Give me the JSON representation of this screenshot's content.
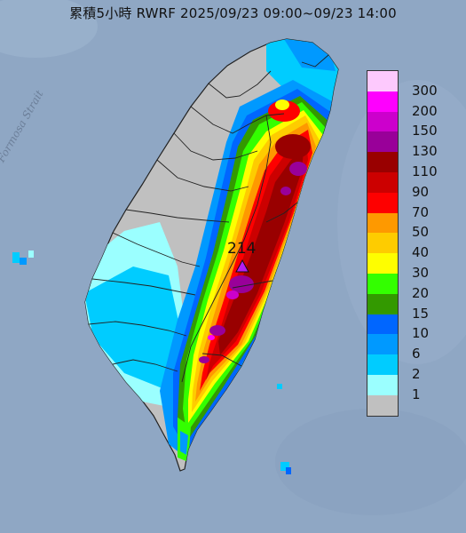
{
  "title": "累積5小時 RWRF 2025/09/23 09:00~09/23 14:00",
  "strait_label": "Formosa Strait",
  "peak": {
    "value_text": "214",
    "marker": "triangle-marker",
    "color": "#b41ef0"
  },
  "legend": {
    "levels": [
      {
        "label": "300",
        "color": "#fdc9fd"
      },
      {
        "label": "200",
        "color": "#fe00fe"
      },
      {
        "label": "150",
        "color": "#cc00cc"
      },
      {
        "label": "130",
        "color": "#990099"
      },
      {
        "label": "110",
        "color": "#990000"
      },
      {
        "label": "90",
        "color": "#cc0000"
      },
      {
        "label": "70",
        "color": "#fe0000"
      },
      {
        "label": "50",
        "color": "#fe9900"
      },
      {
        "label": "40",
        "color": "#fecc00"
      },
      {
        "label": "30",
        "color": "#fefe00"
      },
      {
        "label": "20",
        "color": "#33ff00"
      },
      {
        "label": "15",
        "color": "#339900"
      },
      {
        "label": "10",
        "color": "#0066ff"
      },
      {
        "label": "6",
        "color": "#0099ff"
      },
      {
        "label": "2",
        "color": "#00ccff"
      },
      {
        "label": "1",
        "color": "#9bffff"
      },
      {
        "label": "",
        "color": "#c0c0c0"
      }
    ]
  },
  "colors": {
    "sea": "#8fa7c4",
    "land_dry": "#c0c0c0"
  }
}
